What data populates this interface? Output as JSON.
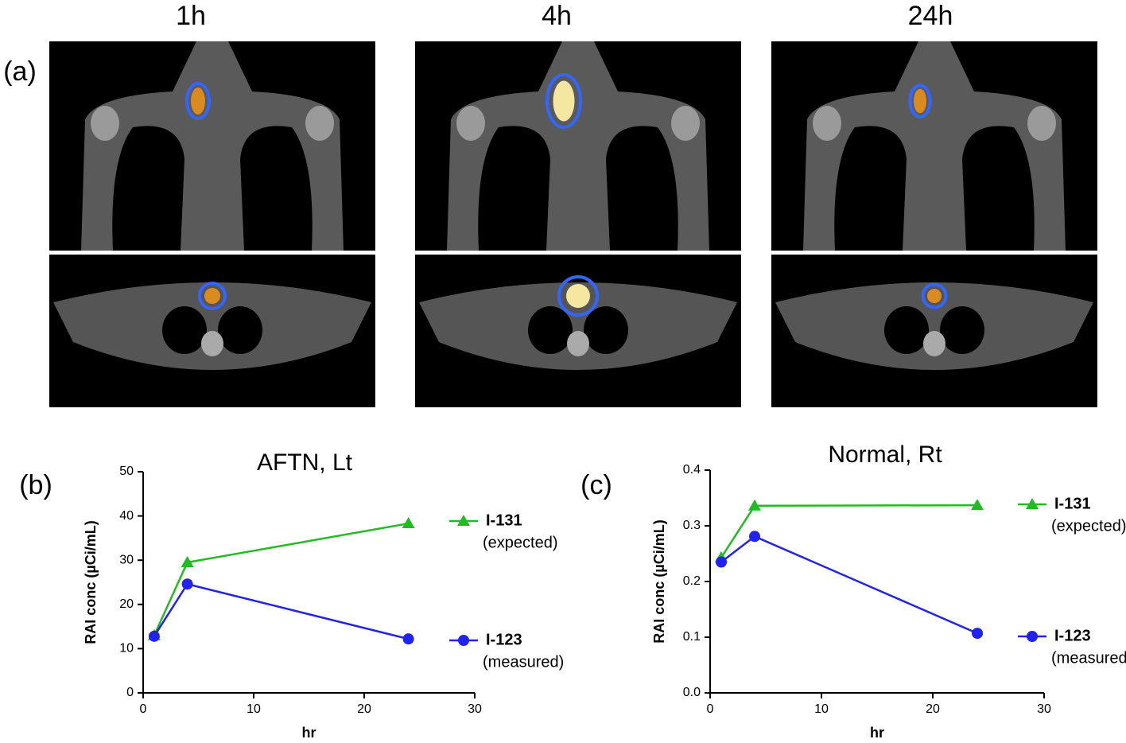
{
  "figure": {
    "panel_label": "(a)",
    "columns": [
      "1h",
      "4h",
      "24h"
    ]
  },
  "chart_data": [
    {
      "type": "line",
      "panel_label": "(b)",
      "title": "AFTN, Lt",
      "x_label": "hr",
      "y_label": "RAI conc (µCi/mL)",
      "x": [
        1,
        4,
        24
      ],
      "xlim": [
        0,
        30
      ],
      "xticks": [
        0,
        10,
        20,
        30
      ],
      "ylim": [
        0,
        50
      ],
      "yticks": [
        0,
        10,
        20,
        30,
        40,
        50
      ],
      "series": [
        {
          "name": "I-131",
          "note": "(expected)",
          "color": "#22bb22",
          "marker": "triangle",
          "values": [
            13,
            29.5,
            38.3
          ]
        },
        {
          "name": "I-123",
          "note": "(measured)",
          "color": "#2222ee",
          "marker": "circle",
          "values": [
            12.8,
            24.6,
            12.2
          ]
        }
      ]
    },
    {
      "type": "line",
      "panel_label": "(c)",
      "title": "Normal, Rt",
      "x_label": "hr",
      "y_label": "RAI conc (µCi/mL)",
      "x": [
        1,
        4,
        24
      ],
      "xlim": [
        0,
        30
      ],
      "xticks": [
        0,
        10,
        20,
        30
      ],
      "ylim": [
        0,
        0.4
      ],
      "yticks": [
        {
          "value": 0,
          "label": "0.0"
        },
        0.1,
        0.2,
        0.3,
        0.4
      ],
      "series": [
        {
          "name": "I-131",
          "note": "(expected)",
          "color": "#22bb22",
          "marker": "triangle",
          "values": [
            0.243,
            0.336,
            0.337
          ]
        },
        {
          "name": "I-123",
          "note": "(measured)",
          "color": "#2222ee",
          "marker": "circle",
          "values": [
            0.235,
            0.281,
            0.107
          ]
        }
      ]
    }
  ]
}
